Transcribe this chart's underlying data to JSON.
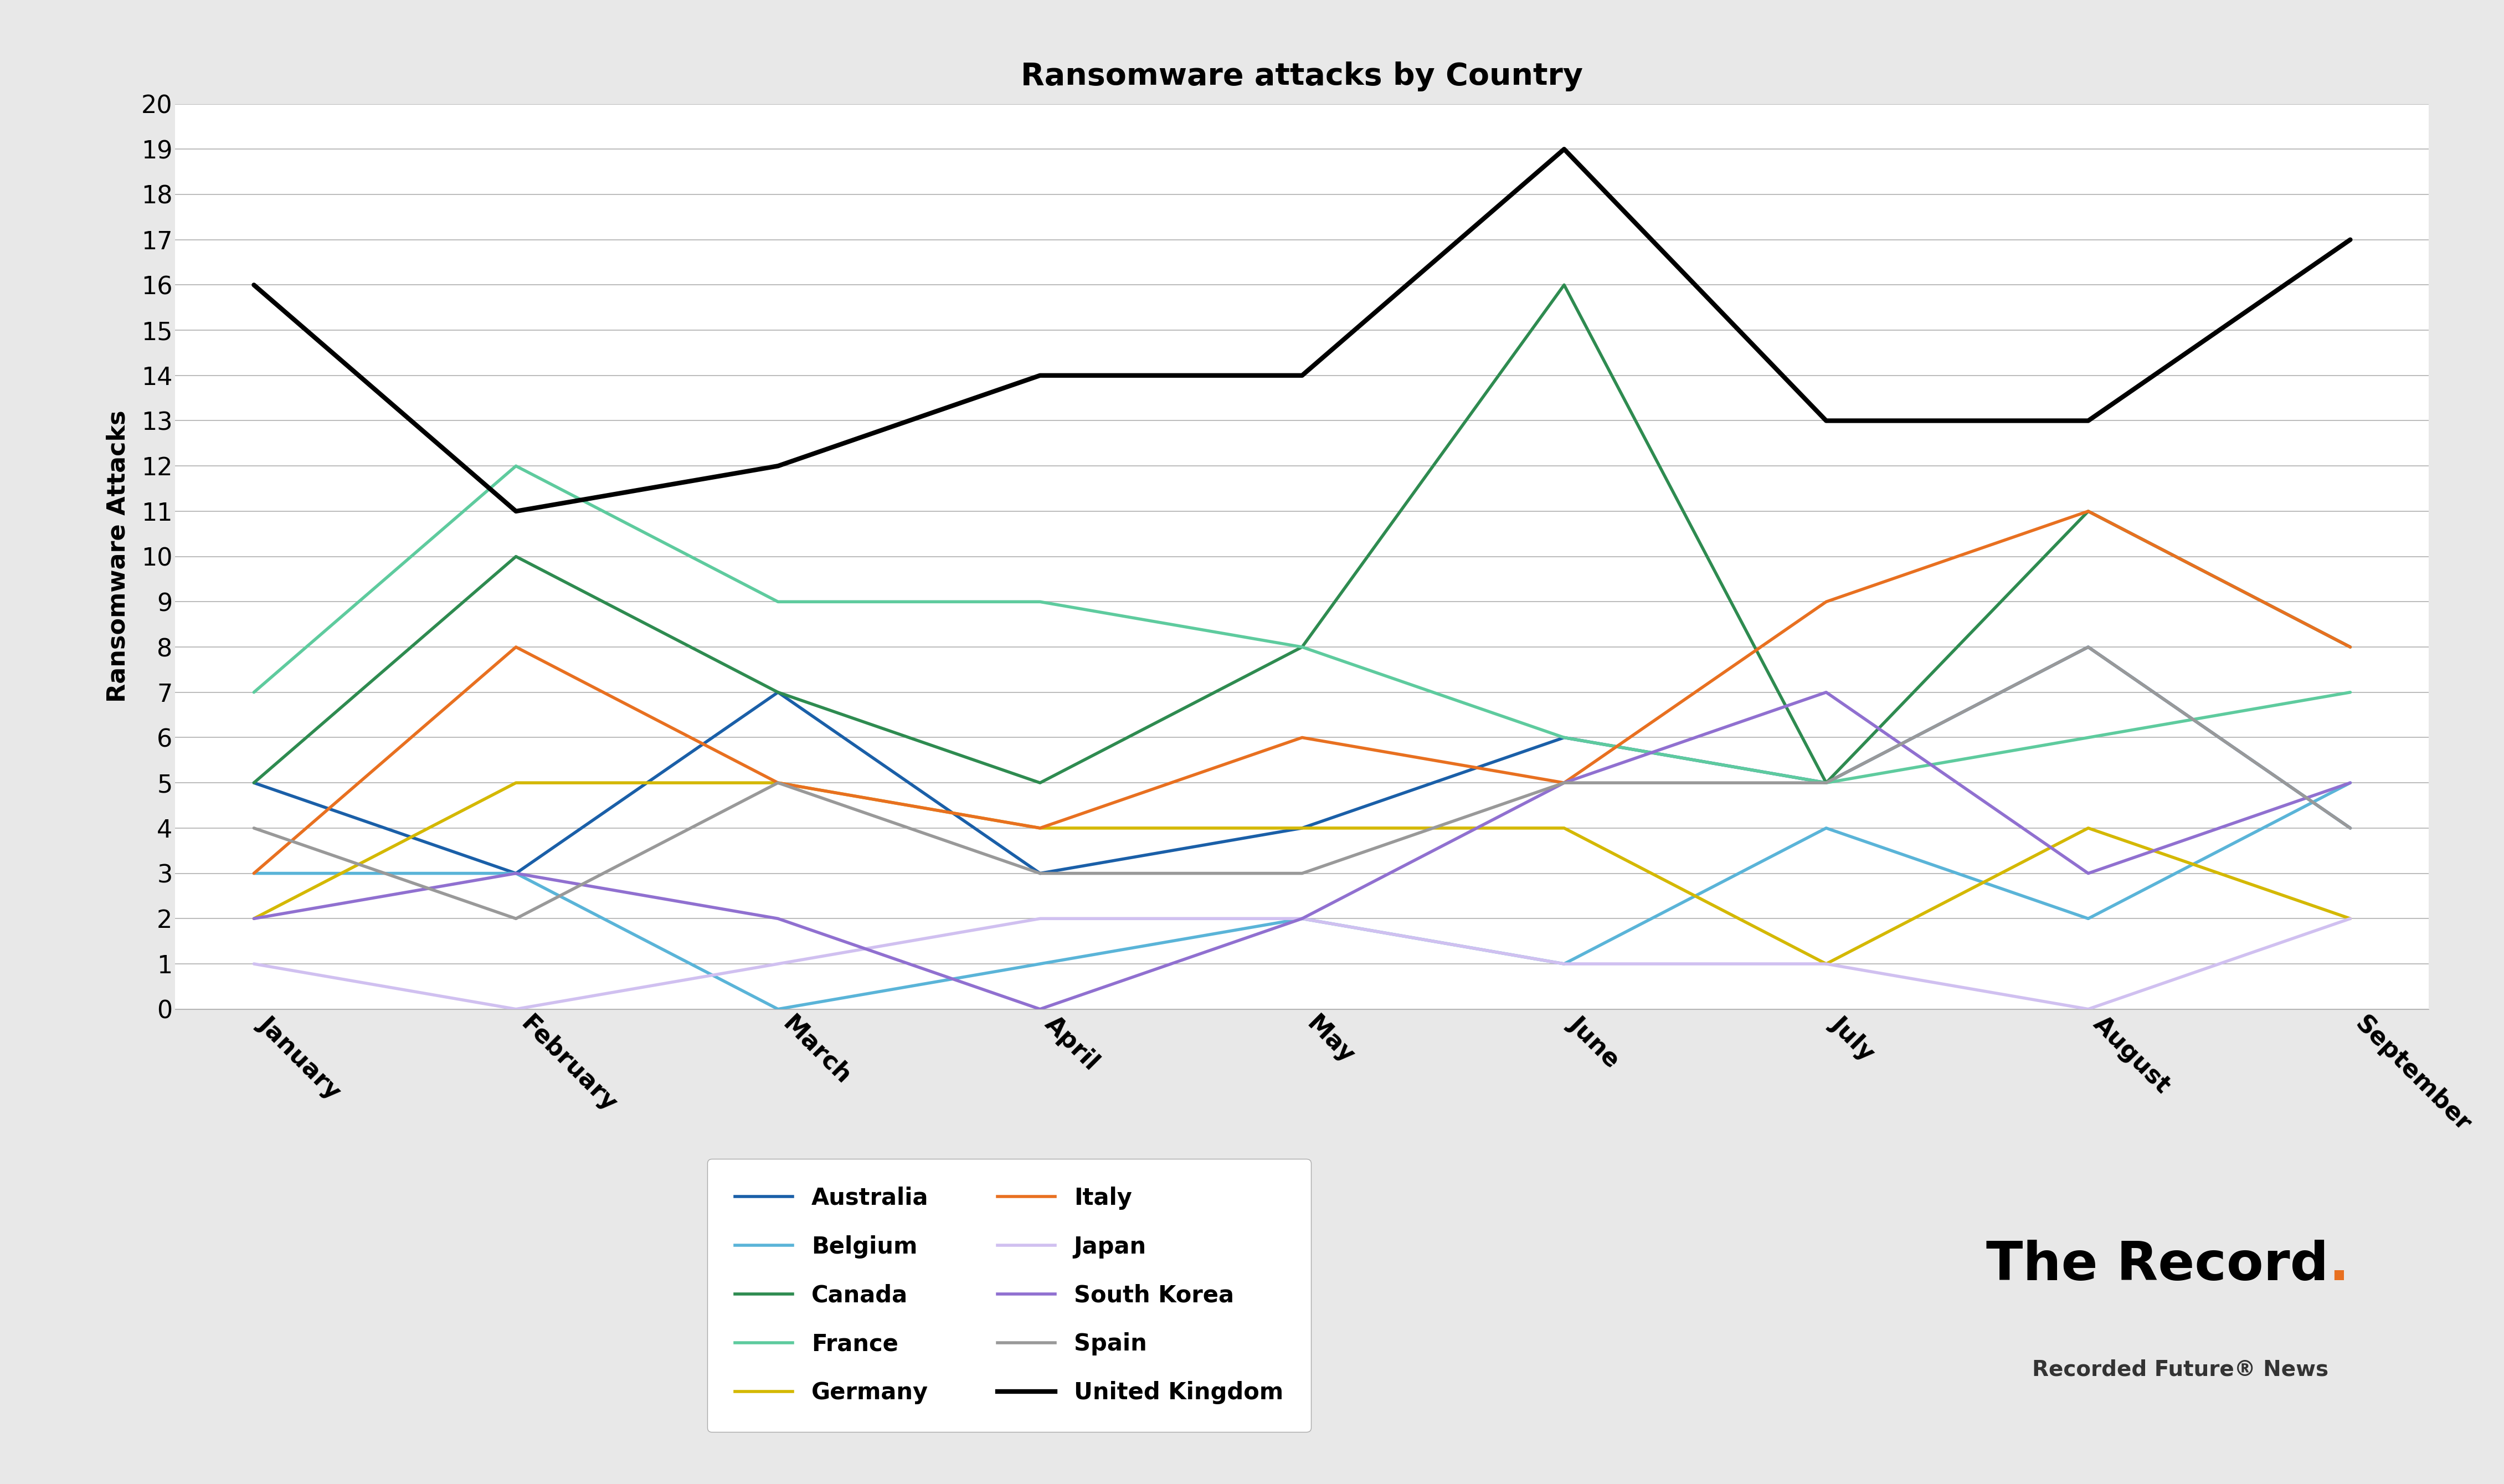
{
  "title": "Ransomware attacks by Country",
  "ylabel": "Ransomware Attacks",
  "months": [
    "January",
    "February",
    "March",
    "April",
    "May",
    "June",
    "July",
    "August",
    "September"
  ],
  "ylim": [
    0,
    20
  ],
  "yticks": [
    0,
    1,
    2,
    3,
    4,
    5,
    6,
    7,
    8,
    9,
    10,
    11,
    12,
    13,
    14,
    15,
    16,
    17,
    18,
    19,
    20
  ],
  "series": {
    "Australia": [
      5,
      3,
      7,
      3,
      4,
      6,
      5,
      8,
      4
    ],
    "Belgium": [
      3,
      3,
      0,
      1,
      2,
      1,
      4,
      2,
      5
    ],
    "Canada": [
      5,
      10,
      7,
      5,
      8,
      16,
      5,
      11,
      8
    ],
    "France": [
      7,
      12,
      9,
      9,
      8,
      6,
      5,
      6,
      7
    ],
    "Germany": [
      2,
      5,
      5,
      4,
      4,
      4,
      1,
      4,
      2
    ],
    "Italy": [
      3,
      8,
      5,
      4,
      6,
      5,
      9,
      11,
      8
    ],
    "Japan": [
      1,
      0,
      1,
      2,
      2,
      1,
      1,
      0,
      2
    ],
    "South Korea": [
      2,
      3,
      2,
      0,
      2,
      5,
      7,
      3,
      5
    ],
    "Spain": [
      4,
      2,
      5,
      3,
      3,
      5,
      5,
      8,
      4
    ],
    "United Kingdom": [
      16,
      11,
      12,
      14,
      14,
      19,
      13,
      13,
      17
    ]
  },
  "colors": {
    "Australia": "#1a5fa8",
    "Belgium": "#5ab4d8",
    "Canada": "#2e8b50",
    "France": "#5ecb9e",
    "Germany": "#d4b800",
    "Italy": "#e87020",
    "Japan": "#d0c0f0",
    "South Korea": "#9070d0",
    "Spain": "#999999",
    "United Kingdom": "#000000"
  },
  "fig_bg": "#e8e8e8",
  "plot_bg": "#ffffff",
  "title_fontsize": 40,
  "axis_label_fontsize": 32,
  "tick_fontsize": 32,
  "legend_fontsize": 30,
  "wm_fontsize": 70,
  "wm_sub_fontsize": 28,
  "watermark_main": "The Record",
  "watermark_dot": ".",
  "watermark_sub": "Recorded Future® News",
  "watermark_color": "#000000",
  "watermark_dot_color": "#e87020",
  "watermark_sub_color": "#333333",
  "line_widths": {
    "Australia": 4,
    "Belgium": 4,
    "Canada": 4,
    "France": 4,
    "Germany": 4,
    "Italy": 4,
    "Japan": 4,
    "South Korea": 4,
    "Spain": 4,
    "United Kingdom": 6
  }
}
